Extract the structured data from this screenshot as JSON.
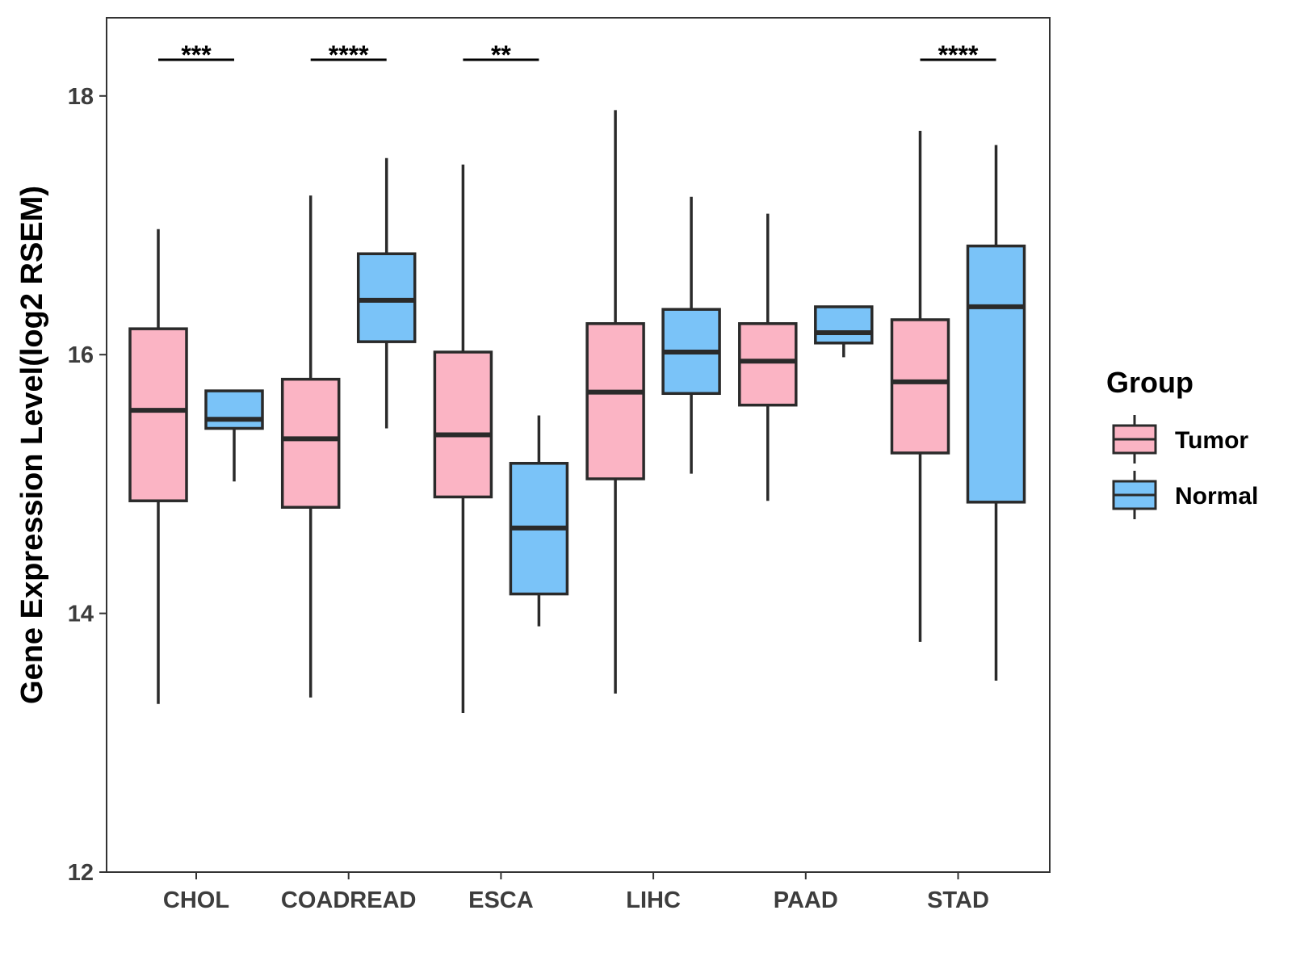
{
  "chart_data": {
    "type": "boxplot",
    "title": "",
    "xlabel": "",
    "ylabel": "Gene Expression Level(log2 RSEM)",
    "ylim": [
      12,
      18.6
    ],
    "yticks": [
      12,
      14,
      16,
      18
    ],
    "categories": [
      "CHOL",
      "COADREAD",
      "ESCA",
      "LIHC",
      "PAAD",
      "STAD"
    ],
    "legend": {
      "title": "Group",
      "position": "right",
      "items": [
        {
          "name": "Tumor",
          "color": "#FBB4C4"
        },
        {
          "name": "Normal",
          "color": "#7AC3F8"
        }
      ]
    },
    "series": [
      {
        "name": "Tumor",
        "color": "#FBB4C4",
        "boxes": [
          {
            "min": 13.3,
            "q1": 14.87,
            "median": 15.57,
            "q3": 16.2,
            "max": 16.97
          },
          {
            "min": 13.35,
            "q1": 14.82,
            "median": 15.35,
            "q3": 15.81,
            "max": 17.23
          },
          {
            "min": 13.23,
            "q1": 14.9,
            "median": 15.38,
            "q3": 16.02,
            "max": 17.47
          },
          {
            "min": 13.38,
            "q1": 15.04,
            "median": 15.71,
            "q3": 16.24,
            "max": 17.89
          },
          {
            "min": 14.87,
            "q1": 15.61,
            "median": 15.95,
            "q3": 16.24,
            "max": 17.09
          },
          {
            "min": 13.78,
            "q1": 15.24,
            "median": 15.79,
            "q3": 16.27,
            "max": 17.73
          }
        ]
      },
      {
        "name": "Normal",
        "color": "#7AC3F8",
        "boxes": [
          {
            "min": 15.02,
            "q1": 15.43,
            "median": 15.5,
            "q3": 15.72,
            "max": 15.72
          },
          {
            "min": 15.43,
            "q1": 16.1,
            "median": 16.42,
            "q3": 16.78,
            "max": 17.52
          },
          {
            "min": 13.9,
            "q1": 14.15,
            "median": 14.66,
            "q3": 15.16,
            "max": 15.53
          },
          {
            "min": 15.08,
            "q1": 15.7,
            "median": 16.02,
            "q3": 16.35,
            "max": 17.22
          },
          {
            "min": 15.98,
            "q1": 16.09,
            "median": 16.17,
            "q3": 16.37,
            "max": 16.37
          },
          {
            "min": 13.48,
            "q1": 14.86,
            "median": 16.37,
            "q3": 16.84,
            "max": 17.62
          }
        ]
      }
    ],
    "significance": [
      {
        "category": "CHOL",
        "label": "***",
        "y": 18.28
      },
      {
        "category": "COADREAD",
        "label": "****",
        "y": 18.28
      },
      {
        "category": "ESCA",
        "label": "**",
        "y": 18.28
      },
      {
        "category": "STAD",
        "label": "****",
        "y": 18.28
      }
    ]
  }
}
